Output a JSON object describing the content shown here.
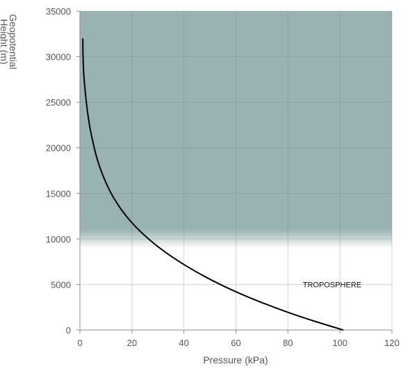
{
  "chart_data": {
    "type": "line",
    "title": "",
    "xlabel": "Pressure (kPa)",
    "ylabel_lines": [
      "Geopotential",
      "Height (m)"
    ],
    "xlim": [
      0,
      120
    ],
    "ylim": [
      0,
      35000
    ],
    "x_ticks": [
      0,
      20,
      40,
      60,
      80,
      100,
      120
    ],
    "y_ticks": [
      0,
      5000,
      10000,
      15000,
      20000,
      25000,
      30000,
      35000
    ],
    "grid": true,
    "shaded_band": {
      "y_from": 9000,
      "y_to": 35000,
      "solid_from": 11000,
      "color": "#99b3b3"
    },
    "annotations": [
      {
        "text": "TROPOSPHERE",
        "x": 97,
        "y": 5000
      }
    ],
    "series": [
      {
        "color": "#000000",
        "x": [
          101.3,
          89.9,
          79.5,
          70.1,
          61.6,
          54.0,
          47.2,
          41.1,
          35.6,
          30.7,
          26.4,
          22.6,
          19.3,
          16.5,
          14.1,
          12.0,
          10.3,
          8.8,
          7.5,
          6.4,
          5.5,
          4.0,
          2.9,
          2.1,
          1.5,
          1.2,
          1.1
        ],
        "y": [
          0,
          1000,
          2000,
          3000,
          4000,
          5000,
          6000,
          7000,
          8000,
          9000,
          10000,
          11000,
          12000,
          13000,
          14000,
          15000,
          16000,
          17000,
          18000,
          19000,
          20000,
          22000,
          24000,
          26000,
          28000,
          30000,
          32000
        ]
      }
    ]
  }
}
